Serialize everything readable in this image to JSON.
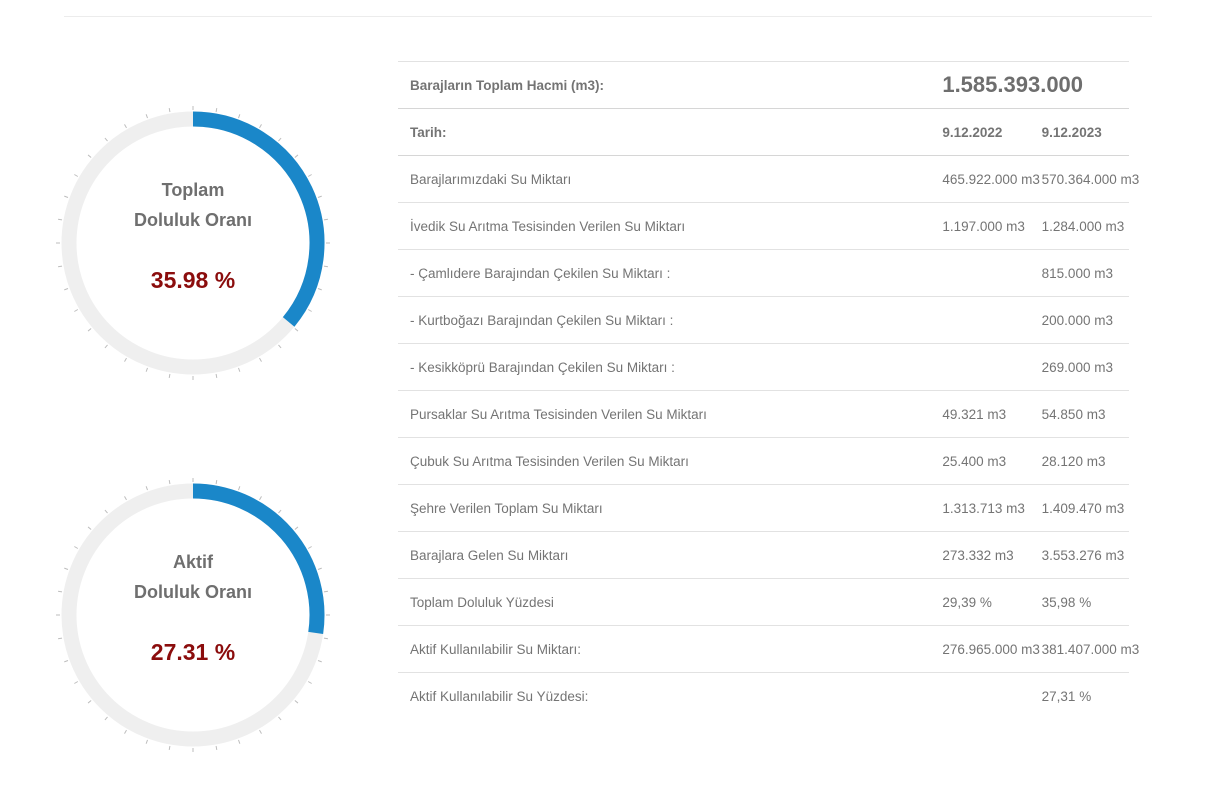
{
  "gauges": [
    {
      "title_line1": "Toplam",
      "title_line2": "Doluluk Oranı",
      "value_text": "35.98 %",
      "percent": 35.98
    },
    {
      "title_line1": "Aktif",
      "title_line2": "Doluluk Oranı",
      "value_text": "27.31 %",
      "percent": 27.31
    }
  ],
  "colors": {
    "gauge_fill": "#1a87c9",
    "gauge_track": "#efefef",
    "gauge_value": "#8b0d0d",
    "highlight_red": "#d0021b"
  },
  "table": {
    "total_label": "Barajların Toplam Hacmi (m3):",
    "total_value": "1.585.393.000",
    "date_label": "Tarih:",
    "date_1": "9.12.2022",
    "date_2": "9.12.2023",
    "rows": [
      {
        "label": "Barajlarımızdaki Su Miktarı",
        "v1": "465.922.000 m3",
        "v2": "570.364.000 m3"
      },
      {
        "label": "İvedik Su Arıtma Tesisinden Verilen Su Miktarı",
        "v1": "1.197.000 m3",
        "v2": "1.284.000 m3"
      },
      {
        "label": "- Çamlıdere Barajından Çekilen Su Miktarı :",
        "v1": "",
        "v2": "815.000 m3"
      },
      {
        "label": "- Kurtboğazı Barajından Çekilen Su Miktarı :",
        "v1": "",
        "v2": "200.000 m3"
      },
      {
        "label": "- Kesikköprü Barajından Çekilen Su Miktarı :",
        "v1": "",
        "v2": "269.000 m3"
      },
      {
        "label": "Pursaklar Su Arıtma Tesisinden Verilen Su Miktarı",
        "v1": "49.321 m3",
        "v2": "54.850 m3"
      },
      {
        "label": "Çubuk Su Arıtma Tesisinden Verilen Su Miktarı",
        "v1": "25.400 m3",
        "v2": "28.120 m3"
      },
      {
        "label": "Şehre Verilen Toplam Su Miktarı",
        "v1": "1.313.713 m3",
        "v2": "1.409.470 m3"
      },
      {
        "label": "Barajlara Gelen Su Miktarı",
        "v1": "273.332 m3",
        "v2": "3.553.276 m3"
      },
      {
        "label": "Toplam Doluluk Yüzdesi",
        "v1": "29,39 %",
        "v2": "35,98 %"
      },
      {
        "label": "Aktif Kullanılabilir Su Miktarı:",
        "v1": "276.965.000 m3",
        "v2": "381.407.000 m3"
      },
      {
        "label": "Aktif Kullanılabilir Su Yüzdesi:",
        "v1": "",
        "v2": "27,31 %"
      }
    ]
  }
}
